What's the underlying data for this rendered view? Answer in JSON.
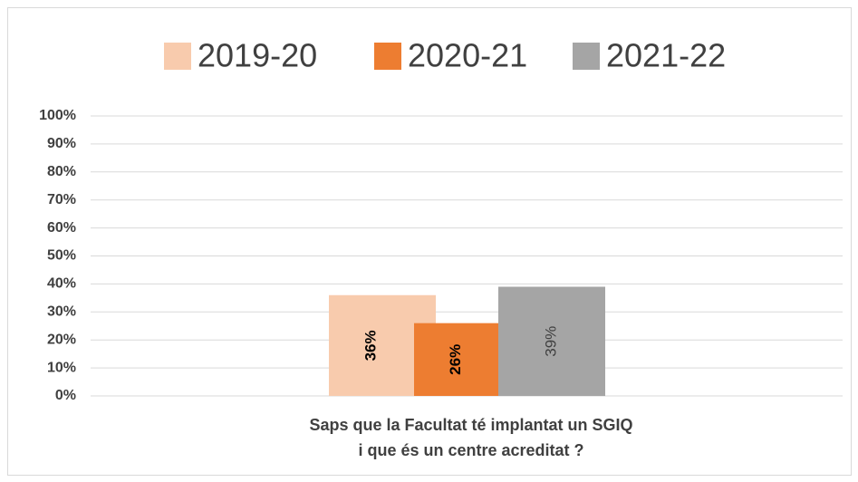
{
  "chart_data": {
    "type": "bar",
    "categories": [
      "Saps que la Facultat té implantat un SGIQ\ni que és un centre acreditat ?"
    ],
    "series": [
      {
        "name": "2019-20",
        "color": "#f8cbad",
        "values": [
          36
        ],
        "value_labels": [
          "36%"
        ]
      },
      {
        "name": "2020-21",
        "color": "#ed7d31",
        "values": [
          26
        ],
        "value_labels": [
          "26%"
        ]
      },
      {
        "name": "2021-22",
        "color": "#a5a5a5",
        "values": [
          39
        ],
        "value_labels": [
          "39%"
        ]
      }
    ],
    "ylim": [
      0,
      100
    ],
    "yticks": [
      {
        "value": 0,
        "label": "0%"
      },
      {
        "value": 10,
        "label": "10%"
      },
      {
        "value": 20,
        "label": "20%"
      },
      {
        "value": 30,
        "label": "30%"
      },
      {
        "value": 40,
        "label": "40%"
      },
      {
        "value": 50,
        "label": "50%"
      },
      {
        "value": 60,
        "label": "60%"
      },
      {
        "value": 70,
        "label": "70%"
      },
      {
        "value": 80,
        "label": "80%"
      },
      {
        "value": 90,
        "label": "90%"
      },
      {
        "value": 100,
        "label": "100%"
      }
    ],
    "grid": true,
    "legend": "top"
  }
}
